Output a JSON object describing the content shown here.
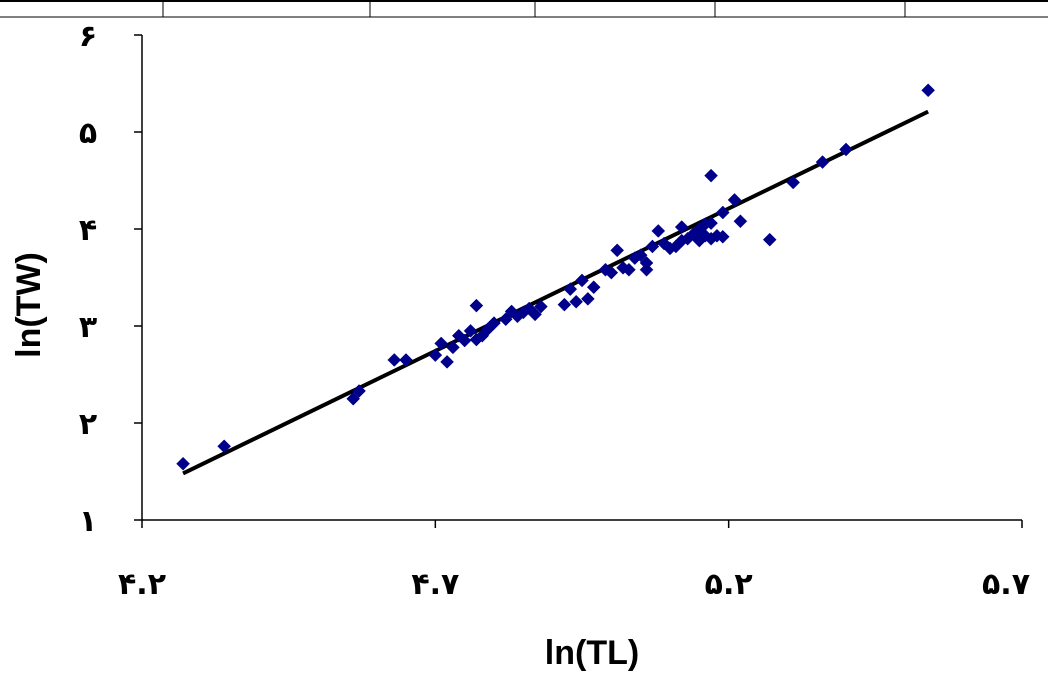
{
  "chart_data": {
    "type": "scatter",
    "xlabel": "ln(TL)",
    "ylabel": "ln(TW)",
    "xlim": [
      4.2,
      5.7
    ],
    "ylim": [
      1,
      6
    ],
    "x_ticks": [
      {
        "value": 4.2,
        "label": "۴.۲"
      },
      {
        "value": 4.7,
        "label": "۴.۷"
      },
      {
        "value": 5.2,
        "label": "۵.۲"
      },
      {
        "value": 5.7,
        "label": "۵.۷"
      }
    ],
    "y_ticks": [
      {
        "value": 1,
        "label": "۱"
      },
      {
        "value": 2,
        "label": "۲"
      },
      {
        "value": 3,
        "label": "۳"
      },
      {
        "value": 4,
        "label": "۴"
      },
      {
        "value": 5,
        "label": "۵"
      },
      {
        "value": 6,
        "label": "۶"
      }
    ],
    "grid": false,
    "legend": "none",
    "series": [
      {
        "marker": "diamond",
        "color": "#00008b",
        "points": [
          [
            4.27,
            1.58
          ],
          [
            4.34,
            1.76
          ],
          [
            4.56,
            2.25
          ],
          [
            4.57,
            2.33
          ],
          [
            4.63,
            2.65
          ],
          [
            4.65,
            2.65
          ],
          [
            4.7,
            2.7
          ],
          [
            4.71,
            2.82
          ],
          [
            4.72,
            2.63
          ],
          [
            4.73,
            2.78
          ],
          [
            4.74,
            2.9
          ],
          [
            4.75,
            2.85
          ],
          [
            4.76,
            2.95
          ],
          [
            4.77,
            3.21
          ],
          [
            4.77,
            2.86
          ],
          [
            4.78,
            2.9
          ],
          [
            4.79,
            2.97
          ],
          [
            4.8,
            3.03
          ],
          [
            4.82,
            3.07
          ],
          [
            4.83,
            3.15
          ],
          [
            4.84,
            3.1
          ],
          [
            4.85,
            3.14
          ],
          [
            4.86,
            3.18
          ],
          [
            4.87,
            3.12
          ],
          [
            4.88,
            3.2
          ],
          [
            4.92,
            3.22
          ],
          [
            4.93,
            3.38
          ],
          [
            4.94,
            3.25
          ],
          [
            4.95,
            3.47
          ],
          [
            4.96,
            3.28
          ],
          [
            4.97,
            3.4
          ],
          [
            4.99,
            3.58
          ],
          [
            5.0,
            3.55
          ],
          [
            5.01,
            3.78
          ],
          [
            5.02,
            3.6
          ],
          [
            5.03,
            3.58
          ],
          [
            5.04,
            3.7
          ],
          [
            5.05,
            3.73
          ],
          [
            5.06,
            3.58
          ],
          [
            5.06,
            3.65
          ],
          [
            5.07,
            3.82
          ],
          [
            5.08,
            3.98
          ],
          [
            5.09,
            3.85
          ],
          [
            5.1,
            3.8
          ],
          [
            5.11,
            3.82
          ],
          [
            5.12,
            3.88
          ],
          [
            5.13,
            3.9
          ],
          [
            5.14,
            3.95
          ],
          [
            5.15,
            3.88
          ],
          [
            5.16,
            3.93
          ],
          [
            5.17,
            3.9
          ],
          [
            5.18,
            3.93
          ],
          [
            5.19,
            3.92
          ],
          [
            5.12,
            4.02
          ],
          [
            5.15,
            4.0
          ],
          [
            5.16,
            4.05
          ],
          [
            5.17,
            4.06
          ],
          [
            5.17,
            4.55
          ],
          [
            5.19,
            4.17
          ],
          [
            5.21,
            4.3
          ],
          [
            5.22,
            4.08
          ],
          [
            5.27,
            3.89
          ],
          [
            5.31,
            4.48
          ],
          [
            5.36,
            4.69
          ],
          [
            5.4,
            4.82
          ],
          [
            5.54,
            5.43
          ]
        ]
      }
    ],
    "trendline": {
      "type": "linear",
      "x": [
        4.27,
        5.54
      ],
      "y": [
        1.48,
        5.21
      ],
      "color": "#000000"
    }
  }
}
